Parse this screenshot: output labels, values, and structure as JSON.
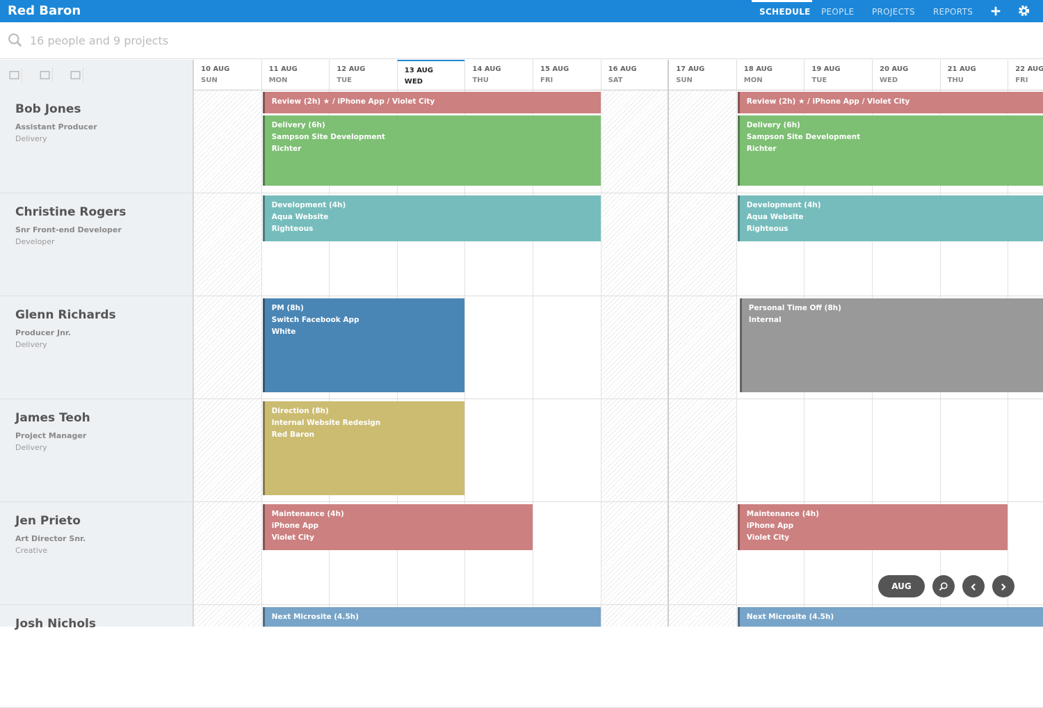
{
  "header": {
    "brand": "Red Baron",
    "nav": [
      "SCHEDULE",
      "PEOPLE",
      "PROJECTS",
      "REPORTS"
    ]
  },
  "search": {
    "placeholder": "16 people and 9 projects"
  },
  "days": [
    {
      "date": "10 AUG",
      "weekday": "SUN"
    },
    {
      "date": "11 AUG",
      "weekday": "MON"
    },
    {
      "date": "12 AUG",
      "weekday": "TUE"
    },
    {
      "date": "13 AUG",
      "weekday": "WED"
    },
    {
      "date": "14 AUG",
      "weekday": "THU"
    },
    {
      "date": "15 AUG",
      "weekday": "FRI"
    },
    {
      "date": "16 AUG",
      "weekday": "SAT"
    },
    {
      "date": "17 AUG",
      "weekday": "SUN"
    },
    {
      "date": "18 AUG",
      "weekday": "MON"
    },
    {
      "date": "19 AUG",
      "weekday": "TUE"
    },
    {
      "date": "20 AUG",
      "weekday": "WED"
    },
    {
      "date": "21 AUG",
      "weekday": "THU"
    },
    {
      "date": "22 AUG",
      "weekday": "FRI"
    }
  ],
  "people": [
    {
      "name": "Bob Jones",
      "title": "Assistant Producer",
      "team": "Delivery",
      "tasks": [
        {
          "lines": [
            "Review (2h) ★ / iPhone App / Violet City"
          ]
        },
        {
          "lines": [
            "Review (2h) ★ / iPhone App / Violet City"
          ]
        },
        {
          "lines": [
            "Delivery (6h)",
            "Sampson Site Development",
            "Richter"
          ]
        },
        {
          "lines": [
            "Delivery (6h)",
            "Sampson Site Development",
            "Richter"
          ]
        }
      ]
    },
    {
      "name": "Christine Rogers",
      "title": "Snr Front-end Developer",
      "team": "Developer",
      "tasks": [
        {
          "lines": [
            "Development (4h)",
            "Aqua Website",
            "Righteous"
          ]
        },
        {
          "lines": [
            "Development (4h)",
            "Aqua Website",
            "Righteous"
          ]
        }
      ]
    },
    {
      "name": "Glenn Richards",
      "title": "Producer Jnr.",
      "team": "Delivery",
      "tasks": [
        {
          "lines": [
            "PM (8h)",
            "Switch Facebook App",
            "White"
          ]
        },
        {
          "lines": [
            "Personal Time Off (8h)",
            "Internal"
          ]
        }
      ]
    },
    {
      "name": "James Teoh",
      "title": "Project Manager",
      "team": "Delivery",
      "tasks": [
        {
          "lines": [
            "Direction (8h)",
            "Internal Website Redesign",
            "Red Baron"
          ]
        }
      ]
    },
    {
      "name": "Jen Prieto",
      "title": "Art Director Snr.",
      "team": "Creative",
      "tasks": [
        {
          "lines": [
            "Maintenance (4h)",
            "iPhone App",
            "Violet City"
          ]
        },
        {
          "lines": [
            "Maintenance (4h)",
            "iPhone App",
            "Violet City"
          ]
        }
      ]
    },
    {
      "name": "Josh Nichols",
      "tasks": [
        {
          "lines": [
            "Next Microsite (4.5h)"
          ]
        },
        {
          "lines": [
            "Next Microsite (4.5h)"
          ]
        }
      ]
    }
  ],
  "controls": {
    "month": "AUG"
  }
}
